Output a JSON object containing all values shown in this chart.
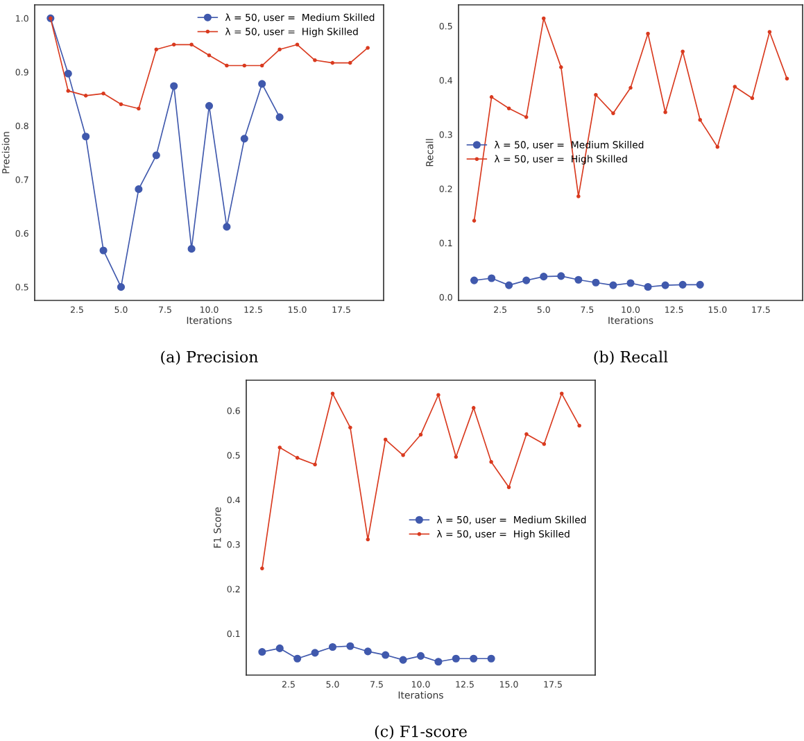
{
  "chart_data": [
    {
      "type": "line",
      "title": "(a) Precision",
      "xlabel": "Iterations",
      "ylabel": "Precision",
      "legend": "top right",
      "grid": false,
      "xlim": [
        0.1,
        19.9
      ],
      "xticks": [
        2.5,
        {
          "value": 5,
          "label": "5.0"
        },
        7.5,
        {
          "value": 10,
          "label": "10.0"
        },
        12.5,
        {
          "value": 15,
          "label": "15.0"
        },
        17.5
      ],
      "ylim": [
        0.475,
        1.025
      ],
      "yticks": [
        0.5,
        0.6,
        0.7,
        0.8,
        0.9,
        {
          "value": 1,
          "label": "1.0"
        }
      ],
      "series": [
        {
          "name": "λ = 50, user =  Medium Skilled",
          "color": "#4059ad",
          "marker": "circle",
          "x": [
            1,
            2,
            3,
            4,
            5,
            6,
            7,
            8,
            9,
            10,
            11,
            12,
            13,
            14
          ],
          "values": [
            1.0,
            0.897,
            0.78,
            0.568,
            0.5,
            0.682,
            0.745,
            0.874,
            0.571,
            0.837,
            0.612,
            0.776,
            0.878,
            0.816
          ]
        },
        {
          "name": "λ = 50, user =  High Skilled",
          "color": "#d93a1f",
          "marker": "point",
          "x": [
            1,
            2,
            3,
            4,
            5,
            6,
            7,
            8,
            9,
            10,
            11,
            12,
            13,
            14,
            15,
            16,
            17,
            18,
            19
          ],
          "values": [
            1.0,
            0.865,
            0.856,
            0.86,
            0.84,
            0.832,
            0.942,
            0.951,
            0.951,
            0.931,
            0.912,
            0.912,
            0.912,
            0.942,
            0.951,
            0.922,
            0.917,
            0.917,
            0.945
          ]
        }
      ]
    },
    {
      "type": "line",
      "title": "(b) Recall",
      "xlabel": "Iterations",
      "ylabel": "Recall",
      "legend": "left",
      "grid": false,
      "xlim": [
        0.1,
        19.9
      ],
      "xticks": [
        2.5,
        {
          "value": 5,
          "label": "5.0"
        },
        7.5,
        {
          "value": 10,
          "label": "10.0"
        },
        12.5,
        {
          "value": 15,
          "label": "15.0"
        },
        17.5
      ],
      "ylim": [
        -0.006,
        0.539
      ],
      "yticks": [
        {
          "value": 0,
          "label": "0.0"
        },
        0.1,
        0.2,
        0.3,
        0.4,
        0.5
      ],
      "series": [
        {
          "name": "λ = 50, user =  Medium Skilled",
          "color": "#4059ad",
          "marker": "circle",
          "x": [
            1,
            2,
            3,
            4,
            5,
            6,
            7,
            8,
            9,
            10,
            11,
            12,
            13,
            14
          ],
          "values": [
            0.031,
            0.035,
            0.022,
            0.031,
            0.038,
            0.039,
            0.032,
            0.027,
            0.022,
            0.026,
            0.019,
            0.022,
            0.023,
            0.023
          ]
        },
        {
          "name": "λ = 50, user =  High Skilled",
          "color": "#d93a1f",
          "marker": "point",
          "x": [
            1,
            2,
            3,
            4,
            5,
            6,
            7,
            8,
            9,
            10,
            11,
            12,
            13,
            14,
            15,
            16,
            17,
            18,
            19
          ],
          "values": [
            0.141,
            0.369,
            0.348,
            0.332,
            0.514,
            0.424,
            0.186,
            0.373,
            0.339,
            0.386,
            0.486,
            0.341,
            0.453,
            0.327,
            0.277,
            0.388,
            0.367,
            0.489,
            0.403
          ]
        }
      ]
    },
    {
      "type": "line",
      "title": "(c) F1-score",
      "xlabel": "Iterations",
      "ylabel": "F1 Score",
      "legend": "right",
      "grid": false,
      "xlim": [
        0.1,
        19.9
      ],
      "xticks": [
        2.5,
        {
          "value": 5,
          "label": "5.0"
        },
        7.5,
        {
          "value": 10,
          "label": "10.0"
        },
        12.5,
        {
          "value": 15,
          "label": "15.0"
        },
        17.5
      ],
      "ylim": [
        0.007,
        0.668
      ],
      "yticks": [
        0.1,
        0.2,
        0.3,
        0.4,
        0.5,
        0.6
      ],
      "series": [
        {
          "name": "λ = 50, user =  Medium Skilled",
          "color": "#4059ad",
          "marker": "circle",
          "x": [
            1,
            2,
            3,
            4,
            5,
            6,
            7,
            8,
            9,
            10,
            11,
            12,
            13,
            14
          ],
          "values": [
            0.059,
            0.067,
            0.044,
            0.057,
            0.07,
            0.072,
            0.06,
            0.052,
            0.041,
            0.05,
            0.037,
            0.044,
            0.044,
            0.044
          ]
        },
        {
          "name": "λ = 50, user =  High Skilled",
          "color": "#d93a1f",
          "marker": "point",
          "x": [
            1,
            2,
            3,
            4,
            5,
            6,
            7,
            8,
            9,
            10,
            11,
            12,
            13,
            14,
            15,
            16,
            17,
            18,
            19
          ],
          "values": [
            0.246,
            0.517,
            0.494,
            0.479,
            0.638,
            0.562,
            0.311,
            0.535,
            0.5,
            0.546,
            0.635,
            0.496,
            0.606,
            0.485,
            0.428,
            0.547,
            0.525,
            0.638,
            0.566
          ]
        }
      ]
    }
  ]
}
